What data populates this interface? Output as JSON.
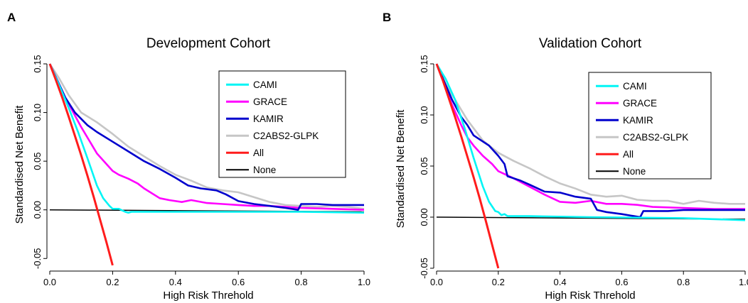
{
  "chart_data": [
    {
      "type": "line",
      "panel_label": "A",
      "title": "Development Cohort",
      "xlabel": "High Risk Threhold",
      "ylabel": "Standardised Net Benefit",
      "xlim": [
        0,
        1
      ],
      "ylim": [
        -0.06,
        0.15
      ],
      "xticks": [
        0.0,
        0.2,
        0.4,
        0.6,
        0.8,
        1.0
      ],
      "xtick_labels": [
        "0.0",
        "0.2",
        "0.4",
        "0.6",
        "0.8",
        "1.0"
      ],
      "yticks": [
        -0.05,
        0.0,
        0.05,
        0.1,
        0.15
      ],
      "ytick_labels": [
        "-0.05",
        "0.00",
        "0.05",
        "0.10",
        "0.15"
      ],
      "grid": false,
      "legend_position": "top-right",
      "series": [
        {
          "name": "CAMI",
          "color": "#00f5f5",
          "x": [
            0,
            0.03,
            0.06,
            0.09,
            0.12,
            0.15,
            0.17,
            0.19,
            0.2,
            0.22,
            0.24,
            0.25,
            0.26,
            0.3,
            0.5,
            0.8,
            1.0
          ],
          "y": [
            0.15,
            0.128,
            0.105,
            0.08,
            0.053,
            0.025,
            0.012,
            0.004,
            0.001,
            0.001,
            -0.002,
            -0.003,
            -0.002,
            -0.002,
            -0.002,
            -0.002,
            -0.003
          ]
        },
        {
          "name": "GRACE",
          "color": "#ff00ff",
          "x": [
            0,
            0.05,
            0.1,
            0.15,
            0.2,
            0.22,
            0.25,
            0.28,
            0.3,
            0.35,
            0.38,
            0.42,
            0.45,
            0.5,
            0.55,
            0.6,
            0.65,
            0.7,
            0.75,
            0.8,
            0.9,
            1.0
          ],
          "y": [
            0.15,
            0.115,
            0.085,
            0.058,
            0.04,
            0.036,
            0.032,
            0.027,
            0.022,
            0.012,
            0.01,
            0.008,
            0.01,
            0.007,
            0.006,
            0.005,
            0.004,
            0.004,
            0.003,
            0.002,
            0.001,
            0.0
          ]
        },
        {
          "name": "KAMIR",
          "color": "#0000cd",
          "x": [
            0,
            0.05,
            0.08,
            0.12,
            0.15,
            0.2,
            0.25,
            0.3,
            0.35,
            0.4,
            0.44,
            0.48,
            0.53,
            0.56,
            0.6,
            0.65,
            0.7,
            0.75,
            0.79,
            0.8,
            0.85,
            0.9,
            1.0
          ],
          "y": [
            0.15,
            0.115,
            0.1,
            0.087,
            0.08,
            0.07,
            0.06,
            0.05,
            0.042,
            0.033,
            0.025,
            0.022,
            0.02,
            0.016,
            0.009,
            0.006,
            0.004,
            0.002,
            0.0,
            0.006,
            0.006,
            0.005,
            0.005
          ]
        },
        {
          "name": "C2ABS2-GLPK",
          "color": "#c6c6c6",
          "x": [
            0,
            0.03,
            0.06,
            0.1,
            0.15,
            0.2,
            0.25,
            0.3,
            0.35,
            0.4,
            0.45,
            0.5,
            0.55,
            0.6,
            0.65,
            0.7,
            0.75,
            0.8,
            0.85,
            0.9,
            0.95,
            1.0
          ],
          "y": [
            0.15,
            0.135,
            0.118,
            0.1,
            0.09,
            0.078,
            0.065,
            0.055,
            0.045,
            0.036,
            0.03,
            0.023,
            0.02,
            0.018,
            0.013,
            0.008,
            0.005,
            0.004,
            0.003,
            0.004,
            0.003,
            0.001
          ]
        },
        {
          "name": "All",
          "color": "#ff1c1c",
          "x": [
            0,
            0.02,
            0.04,
            0.06,
            0.08,
            0.1,
            0.12,
            0.14,
            0.16,
            0.18,
            0.2
          ],
          "y": [
            0.15,
            0.133,
            0.115,
            0.096,
            0.076,
            0.056,
            0.035,
            0.013,
            -0.01,
            -0.033,
            -0.057
          ]
        },
        {
          "name": "None",
          "color": "#000000",
          "x": [
            0,
            1
          ],
          "y": [
            0,
            -0.002
          ]
        }
      ]
    },
    {
      "type": "line",
      "panel_label": "B",
      "title": "Validation Cohort",
      "xlabel": "High Risk Threhold",
      "ylabel": "Standardised Net Benefit",
      "xlim": [
        0,
        1
      ],
      "ylim": [
        -0.05,
        0.15
      ],
      "xticks": [
        0.0,
        0.2,
        0.4,
        0.6,
        0.8,
        1.0
      ],
      "xtick_labels": [
        "0.0",
        "0.2",
        "0.4",
        "0.6",
        "0.8",
        "1.0"
      ],
      "yticks": [
        -0.05,
        0.0,
        0.05,
        0.1,
        0.15
      ],
      "ytick_labels": [
        "-0.05",
        "0.00",
        "0.05",
        "0.10",
        "0.15"
      ],
      "grid": false,
      "legend_position": "top-right",
      "series": [
        {
          "name": "CAMI",
          "color": "#00f5f5",
          "x": [
            0,
            0.03,
            0.06,
            0.09,
            0.12,
            0.15,
            0.17,
            0.19,
            0.2,
            0.21,
            0.22,
            0.23,
            0.3,
            0.5,
            0.8,
            1.0
          ],
          "y": [
            0.15,
            0.135,
            0.115,
            0.088,
            0.058,
            0.03,
            0.015,
            0.006,
            0.005,
            0.002,
            0.003,
            0.001,
            0.001,
            0.0,
            -0.001,
            -0.003
          ]
        },
        {
          "name": "GRACE",
          "color": "#ff00ff",
          "x": [
            0,
            0.05,
            0.08,
            0.1,
            0.12,
            0.15,
            0.18,
            0.2,
            0.25,
            0.3,
            0.35,
            0.4,
            0.45,
            0.5,
            0.55,
            0.6,
            0.65,
            0.7,
            0.8,
            0.9,
            1.0
          ],
          "y": [
            0.15,
            0.11,
            0.09,
            0.078,
            0.07,
            0.06,
            0.052,
            0.045,
            0.038,
            0.03,
            0.022,
            0.015,
            0.014,
            0.016,
            0.013,
            0.013,
            0.012,
            0.01,
            0.009,
            0.008,
            0.008
          ]
        },
        {
          "name": "KAMIR",
          "color": "#0000cd",
          "x": [
            0,
            0.05,
            0.08,
            0.1,
            0.12,
            0.15,
            0.17,
            0.2,
            0.22,
            0.23,
            0.27,
            0.3,
            0.35,
            0.4,
            0.45,
            0.5,
            0.52,
            0.55,
            0.6,
            0.66,
            0.67,
            0.7,
            0.75,
            0.8,
            1.0
          ],
          "y": [
            0.15,
            0.115,
            0.098,
            0.09,
            0.08,
            0.074,
            0.07,
            0.06,
            0.052,
            0.04,
            0.036,
            0.032,
            0.025,
            0.024,
            0.02,
            0.018,
            0.007,
            0.005,
            0.003,
            0.0,
            0.006,
            0.006,
            0.006,
            0.007,
            0.007
          ]
        },
        {
          "name": "C2ABS2-GLPK",
          "color": "#c6c6c6",
          "x": [
            0,
            0.03,
            0.06,
            0.1,
            0.15,
            0.2,
            0.25,
            0.3,
            0.35,
            0.4,
            0.45,
            0.5,
            0.55,
            0.6,
            0.65,
            0.7,
            0.75,
            0.8,
            0.85,
            0.9,
            0.95,
            1.0
          ],
          "y": [
            0.15,
            0.13,
            0.115,
            0.095,
            0.075,
            0.063,
            0.055,
            0.048,
            0.04,
            0.033,
            0.028,
            0.022,
            0.02,
            0.021,
            0.017,
            0.016,
            0.016,
            0.013,
            0.016,
            0.014,
            0.013,
            0.013
          ]
        },
        {
          "name": "All",
          "color": "#ff1c1c",
          "x": [
            0,
            0.02,
            0.04,
            0.06,
            0.08,
            0.1,
            0.12,
            0.14,
            0.16,
            0.18,
            0.2
          ],
          "y": [
            0.15,
            0.134,
            0.116,
            0.098,
            0.079,
            0.059,
            0.039,
            0.018,
            -0.004,
            -0.027,
            -0.05
          ]
        },
        {
          "name": "None",
          "color": "#000000",
          "x": [
            0,
            1
          ],
          "y": [
            0,
            -0.002
          ]
        }
      ]
    }
  ]
}
